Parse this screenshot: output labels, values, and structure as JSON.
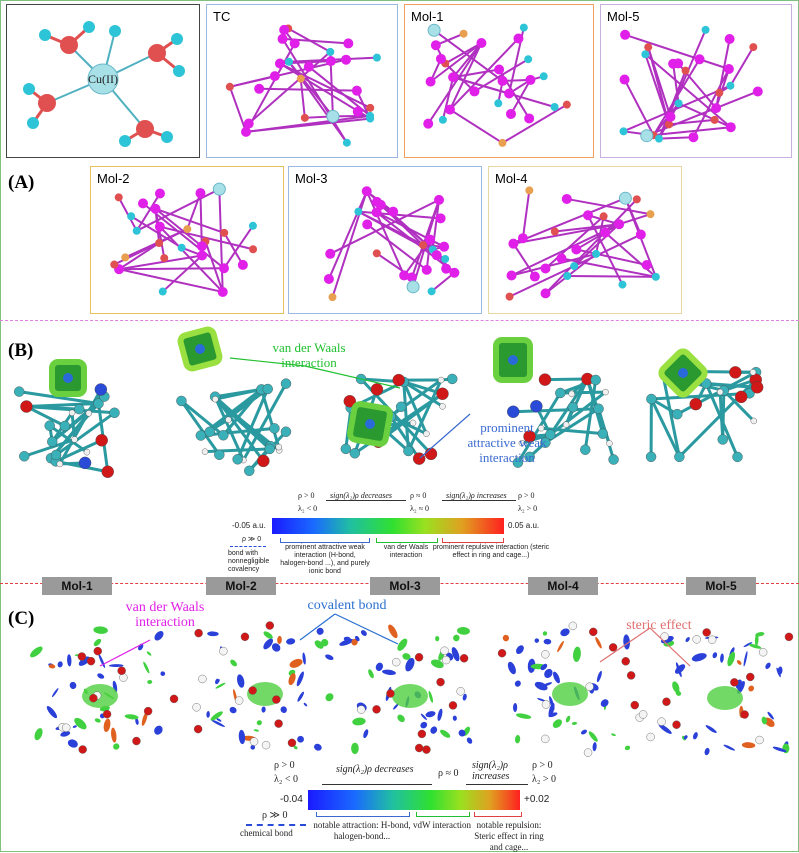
{
  "section_labels": {
    "a": "(A)",
    "b": "(B)",
    "c": "(C)"
  },
  "panel_a": {
    "cu_label": "Cu(II)",
    "top_row": [
      "TC",
      "Mol-1",
      "Mol-5"
    ],
    "bottom_row": [
      "Mol-2",
      "Mol-3",
      "Mol-4"
    ]
  },
  "panel_b": {
    "annotation_vdw": "van der Waals\ninteraction",
    "annotation_attr": "prominent\nattractive weak\ninteraction",
    "scale": {
      "rho_pos_left": "ρ > 0",
      "lambda_neg": "λ₂ < 0",
      "decreases": "sign(λ₂)ρ decreases",
      "rho_zero": "ρ ≈ 0",
      "lambda_zero": "λ₂ ≈ 0",
      "increases": "sign(λ₂)ρ increases",
      "rho_pos_right": "ρ > 0",
      "lambda_pos": "λ₂ > 0",
      "min": "-0.05 a.u.",
      "max": "0.05 a.u.",
      "rho_big": "ρ ≫ 0",
      "bond_note": "bond with nonnegligible covalency",
      "attr_note": "prominent attractive weak interaction (H-bond, halogen-bond ...), and purely ionic bond",
      "vdw_note": "van der Waals interaction",
      "rep_note": "prominent repulsive interaction (steric effect in ring and cage...)"
    }
  },
  "panel_c": {
    "tags": [
      "Mol-1",
      "Mol-2",
      "Mol-3",
      "Mol-4",
      "Mol-5"
    ],
    "annotation_vdw": "van der Waals\ninteraction",
    "annotation_cov": "covalent bond",
    "annotation_steric": "steric effect",
    "scale": {
      "rho_pos_left": "ρ > 0",
      "lambda_neg": "λ₂ < 0",
      "decreases": "sign(λ₂)ρ decreases",
      "rho_zero": "ρ ≈ 0",
      "increases": "sign(λ₂)ρ increases",
      "rho_pos_right": "ρ > 0",
      "lambda_pos": "λ₂ > 0",
      "min": "-0.04",
      "max": "+0.02",
      "rho_big": "ρ ≫ 0",
      "bond_note": "chemical bond",
      "attr_note": "notable attraction: H-bond, halogen-bond...",
      "vdw_note": "vdW interaction",
      "rep_note": "notable repulsion: Steric effect in ring and cage..."
    }
  },
  "colors": {
    "carbon": "#e020e8",
    "hydrogen": "#2ec4d8",
    "oxygen": "#e05050",
    "copper": "#a8e0e8",
    "nitrogen": "#2a4ad8",
    "vdw_green": "#22c030",
    "attr_blue": "#3a6ad0",
    "steric_red": "#e07070",
    "divider_pink": "#e080e0",
    "divider_red": "#e04040"
  }
}
